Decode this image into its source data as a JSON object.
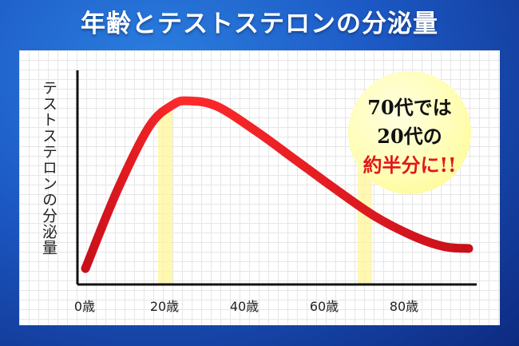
{
  "title": "年齢とテストステロンの分泌量",
  "callout": {
    "line1": "70代では",
    "line2": "20代の",
    "line3": "約半分に!!"
  },
  "colors": {
    "background": "#1c58c4",
    "curve_start": "#c8101a",
    "curve_peak": "#ff2a2a",
    "highlight": "#fff59a",
    "callout_accent": "#e0161c"
  },
  "chart_data": {
    "type": "line",
    "title": "年齢とテストステロンの分泌量",
    "xlabel": "",
    "ylabel": "テストステロンの分泌量",
    "x_ticks": [
      "0歳",
      "20歳",
      "40歳",
      "60歳",
      "80歳"
    ],
    "x_tick_values": [
      0,
      20,
      40,
      60,
      80
    ],
    "xlim": [
      0,
      100
    ],
    "ylim": [
      0,
      100
    ],
    "grid": true,
    "highlight_ages": [
      22,
      72
    ],
    "series": [
      {
        "x": [
          2,
          10,
          18,
          24,
          28,
          35,
          45,
          55,
          65,
          75,
          85,
          92,
          98
        ],
        "values": [
          7,
          50,
          85,
          97,
          99,
          96,
          82,
          66,
          50,
          35,
          24,
          19,
          18
        ]
      }
    ]
  }
}
